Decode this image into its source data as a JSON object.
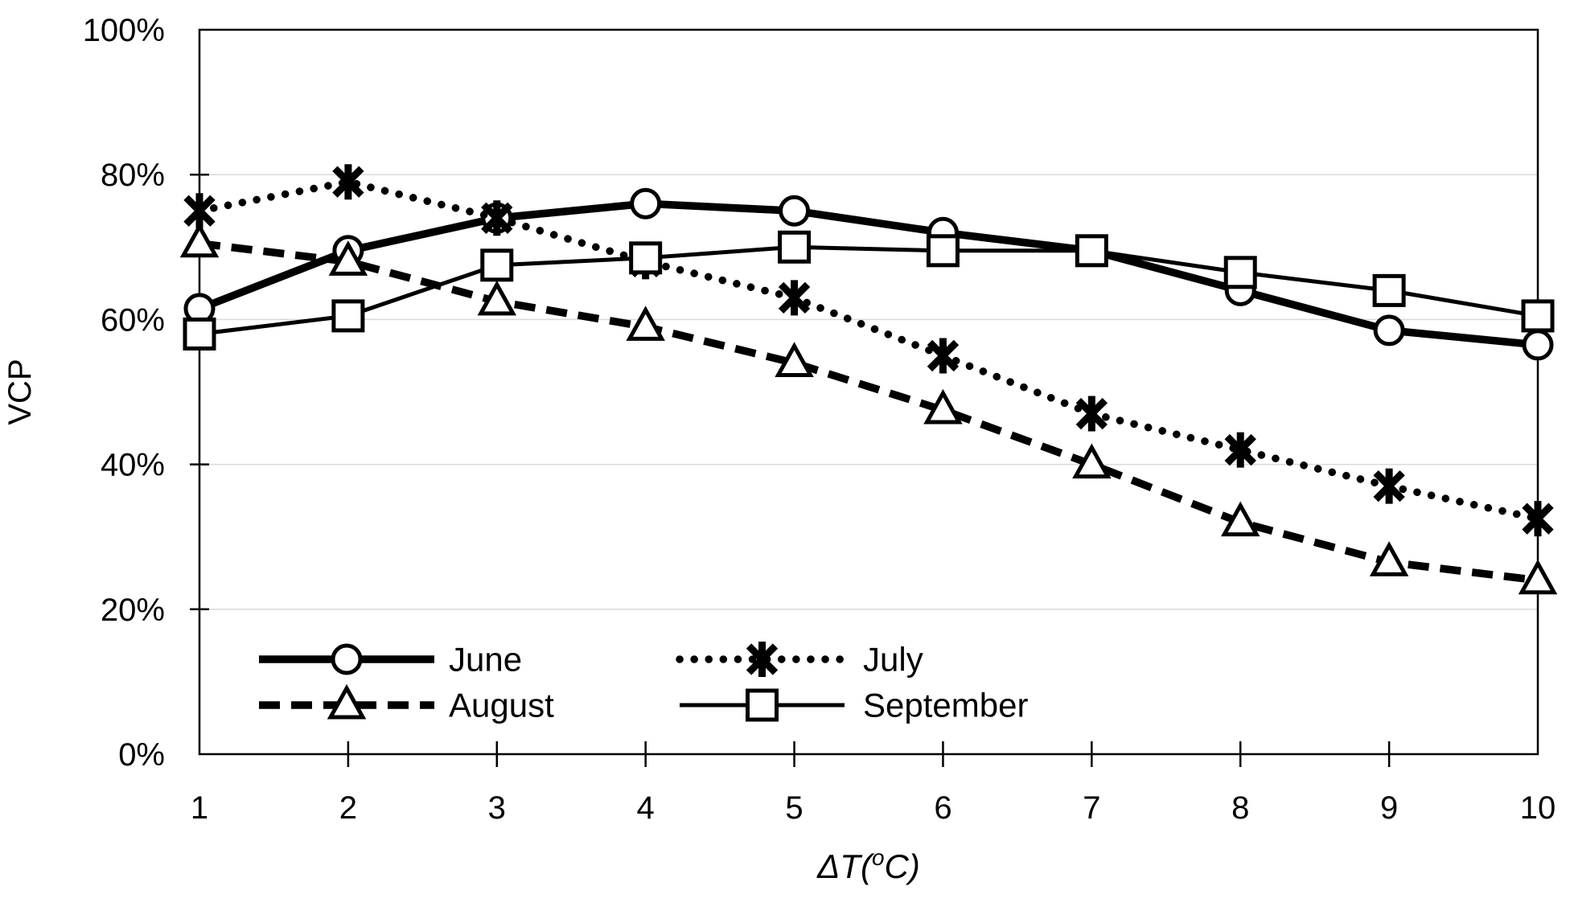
{
  "colors": {
    "series": "#000000",
    "grid": "#d9d9d9",
    "background": "#ffffff",
    "marker_fill": "#ffffff"
  },
  "chart_data": {
    "type": "line",
    "title": "",
    "ylabel": "VCP",
    "xlabel_parts": {
      "prefix": "ΔT(",
      "sup": "o",
      "suffix": "C)"
    },
    "x": [
      1,
      2,
      3,
      4,
      5,
      6,
      7,
      8,
      9,
      10
    ],
    "xticks": [
      "1",
      "2",
      "3",
      "4",
      "5",
      "6",
      "7",
      "8",
      "9",
      "10"
    ],
    "yticks": [
      "0%",
      "20%",
      "40%",
      "60%",
      "80%",
      "100%"
    ],
    "ytick_values": [
      0,
      20,
      40,
      60,
      80,
      100
    ],
    "ylim": [
      0,
      100
    ],
    "grid": true,
    "legend_position": "inside-bottom-left",
    "series": [
      {
        "name": "June",
        "marker": "circle",
        "line": "solid",
        "width": 9.5,
        "values": [
          61.5,
          69.5,
          74,
          76,
          75,
          72,
          69.5,
          64,
          58.5,
          56.5
        ]
      },
      {
        "name": "July",
        "marker": "asterisk",
        "line": "dotted",
        "width": 9.5,
        "values": [
          75,
          79,
          74,
          68,
          63,
          55,
          47,
          42,
          37,
          32.5
        ]
      },
      {
        "name": "August",
        "marker": "triangle",
        "line": "dashed",
        "width": 9.5,
        "values": [
          70.5,
          68,
          62.5,
          59,
          54,
          47.5,
          40,
          32,
          26.5,
          24
        ]
      },
      {
        "name": "September",
        "marker": "square",
        "line": "solid",
        "width": 5,
        "values": [
          58,
          60.5,
          67.5,
          68.5,
          70,
          69.5,
          69.5,
          66.5,
          64,
          60.5
        ]
      }
    ],
    "legend": {
      "columns": [
        {
          "rows": [
            {
              "series": 0
            },
            {
              "series": 2
            }
          ]
        },
        {
          "rows": [
            {
              "series": 1
            },
            {
              "series": 3
            }
          ]
        }
      ]
    }
  }
}
